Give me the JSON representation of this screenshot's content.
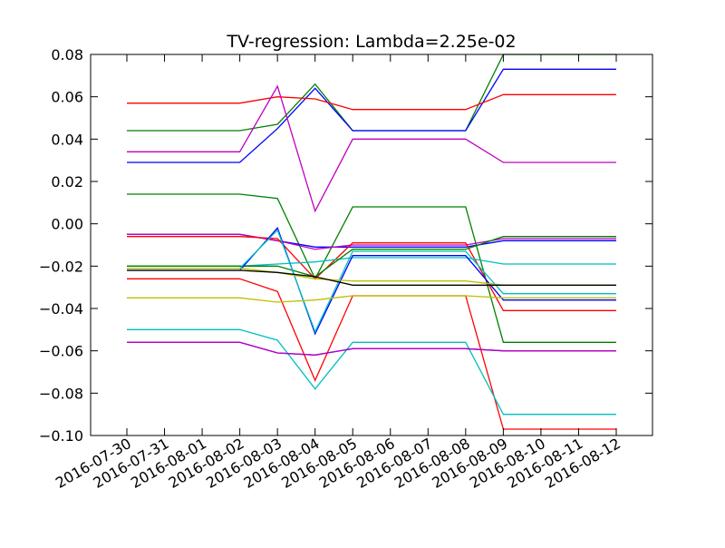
{
  "chart_data": {
    "type": "line",
    "title": "TV-regression: Lambda=2.25e-02",
    "xlabel": "",
    "ylabel": "",
    "ylim": [
      -0.1,
      0.08
    ],
    "grid": false,
    "legend": "none",
    "categories": [
      "2016-07-30",
      "2016-07-31",
      "2016-08-01",
      "2016-08-02",
      "2016-08-03",
      "2016-08-04",
      "2016-08-05",
      "2016-08-06",
      "2016-08-07",
      "2016-08-08",
      "2016-08-09",
      "2016-08-10",
      "2016-08-11",
      "2016-08-12"
    ],
    "y_ticks": [
      "0.08",
      "0.06",
      "0.04",
      "0.02",
      "0.00",
      "−0.02",
      "−0.04",
      "−0.06",
      "−0.08",
      "−0.10"
    ],
    "y_tick_values": [
      0.08,
      0.06,
      0.04,
      0.02,
      0.0,
      -0.02,
      -0.04,
      -0.06,
      -0.08,
      -0.1
    ],
    "series": [
      {
        "color": "#008000",
        "points": [
          [
            "2016-07-30",
            0.044
          ],
          [
            "2016-08-02",
            0.044
          ],
          [
            "2016-08-03",
            0.047
          ],
          [
            "2016-08-04",
            0.066
          ],
          [
            "2016-08-05",
            0.044
          ],
          [
            "2016-08-08",
            0.044
          ],
          [
            "2016-08-09",
            0.08
          ],
          [
            "2016-08-12",
            0.08
          ]
        ]
      },
      {
        "color": "#0000ff",
        "points": [
          [
            "2016-07-30",
            0.029
          ],
          [
            "2016-08-02",
            0.029
          ],
          [
            "2016-08-03",
            0.045
          ],
          [
            "2016-08-04",
            0.064
          ],
          [
            "2016-08-05",
            0.044
          ],
          [
            "2016-08-08",
            0.044
          ],
          [
            "2016-08-09",
            0.073
          ],
          [
            "2016-08-12",
            0.073
          ]
        ]
      },
      {
        "color": "#ff0000",
        "points": [
          [
            "2016-07-30",
            0.057
          ],
          [
            "2016-08-02",
            0.057
          ],
          [
            "2016-08-03",
            0.06
          ],
          [
            "2016-08-04",
            0.059
          ],
          [
            "2016-08-05",
            0.054
          ],
          [
            "2016-08-08",
            0.054
          ],
          [
            "2016-08-09",
            0.061
          ],
          [
            "2016-08-12",
            0.061
          ]
        ]
      },
      {
        "color": "#bf00bf",
        "points": [
          [
            "2016-07-30",
            0.034
          ],
          [
            "2016-08-02",
            0.034
          ],
          [
            "2016-08-03",
            0.065
          ],
          [
            "2016-08-04",
            0.006
          ],
          [
            "2016-08-05",
            0.04
          ],
          [
            "2016-08-08",
            0.04
          ],
          [
            "2016-08-09",
            0.029
          ],
          [
            "2016-08-12",
            0.029
          ]
        ]
      },
      {
        "color": "#008000",
        "points": [
          [
            "2016-07-30",
            0.014
          ],
          [
            "2016-08-02",
            0.014
          ],
          [
            "2016-08-03",
            0.012
          ],
          [
            "2016-08-04",
            -0.026
          ],
          [
            "2016-08-05",
            0.008
          ],
          [
            "2016-08-08",
            0.008
          ],
          [
            "2016-08-09",
            -0.056
          ],
          [
            "2016-08-12",
            -0.056
          ]
        ]
      },
      {
        "color": "#0000ff",
        "points": [
          [
            "2016-07-30",
            -0.005
          ],
          [
            "2016-08-02",
            -0.005
          ],
          [
            "2016-08-03",
            -0.008
          ],
          [
            "2016-08-04",
            -0.011
          ],
          [
            "2016-08-05",
            -0.011
          ],
          [
            "2016-08-08",
            -0.011
          ],
          [
            "2016-08-09",
            -0.008
          ],
          [
            "2016-08-12",
            -0.008
          ]
        ]
      },
      {
        "color": "#bf00bf",
        "points": [
          [
            "2016-07-30",
            -0.005
          ],
          [
            "2016-08-02",
            -0.005
          ],
          [
            "2016-08-03",
            -0.008
          ],
          [
            "2016-08-04",
            -0.012
          ],
          [
            "2016-08-05",
            -0.01
          ],
          [
            "2016-08-08",
            -0.01
          ],
          [
            "2016-08-09",
            -0.007
          ],
          [
            "2016-08-12",
            -0.007
          ]
        ]
      },
      {
        "color": "#ff0000",
        "points": [
          [
            "2016-07-30",
            -0.006
          ],
          [
            "2016-08-02",
            -0.006
          ],
          [
            "2016-08-03",
            -0.007
          ],
          [
            "2016-08-04",
            -0.026
          ],
          [
            "2016-08-05",
            -0.009
          ],
          [
            "2016-08-08",
            -0.009
          ],
          [
            "2016-08-09",
            -0.041
          ],
          [
            "2016-08-12",
            -0.041
          ]
        ]
      },
      {
        "color": "#00bfbf",
        "points": [
          [
            "2016-07-30",
            -0.02
          ],
          [
            "2016-08-02",
            -0.02
          ],
          [
            "2016-08-03",
            -0.019
          ],
          [
            "2016-08-04",
            -0.018
          ],
          [
            "2016-08-05",
            -0.016
          ],
          [
            "2016-08-08",
            -0.016
          ],
          [
            "2016-08-09",
            -0.019
          ],
          [
            "2016-08-12",
            -0.019
          ]
        ]
      },
      {
        "color": "#008000",
        "points": [
          [
            "2016-07-30",
            -0.02
          ],
          [
            "2016-08-02",
            -0.02
          ],
          [
            "2016-08-03",
            -0.02
          ],
          [
            "2016-08-04",
            -0.025
          ],
          [
            "2016-08-05",
            -0.012
          ],
          [
            "2016-08-08",
            -0.012
          ],
          [
            "2016-08-09",
            -0.006
          ],
          [
            "2016-08-12",
            -0.006
          ]
        ]
      },
      {
        "color": "#0000ff",
        "points": [
          [
            "2016-07-30",
            -0.022
          ],
          [
            "2016-08-02",
            -0.022
          ],
          [
            "2016-08-03",
            -0.002
          ],
          [
            "2016-08-04",
            -0.052
          ],
          [
            "2016-08-05",
            -0.015
          ],
          [
            "2016-08-08",
            -0.015
          ],
          [
            "2016-08-09",
            -0.036
          ],
          [
            "2016-08-12",
            -0.036
          ]
        ]
      },
      {
        "color": "#00bfbf",
        "points": [
          [
            "2016-07-30",
            -0.021
          ],
          [
            "2016-08-02",
            -0.021
          ],
          [
            "2016-08-03",
            -0.003
          ],
          [
            "2016-08-04",
            -0.051
          ],
          [
            "2016-08-05",
            -0.013
          ],
          [
            "2016-08-08",
            -0.013
          ],
          [
            "2016-08-09",
            -0.033
          ],
          [
            "2016-08-12",
            -0.033
          ]
        ]
      },
      {
        "color": "#bfbf00",
        "points": [
          [
            "2016-07-30",
            -0.021
          ],
          [
            "2016-08-02",
            -0.021
          ],
          [
            "2016-08-03",
            -0.023
          ],
          [
            "2016-08-04",
            -0.026
          ],
          [
            "2016-08-05",
            -0.027
          ],
          [
            "2016-08-08",
            -0.027
          ],
          [
            "2016-08-09",
            -0.029
          ],
          [
            "2016-08-12",
            -0.029
          ]
        ]
      },
      {
        "color": "#000000",
        "points": [
          [
            "2016-07-30",
            -0.022
          ],
          [
            "2016-08-02",
            -0.022
          ],
          [
            "2016-08-03",
            -0.023
          ],
          [
            "2016-08-04",
            -0.025
          ],
          [
            "2016-08-05",
            -0.029
          ],
          [
            "2016-08-08",
            -0.029
          ],
          [
            "2016-08-09",
            -0.029
          ],
          [
            "2016-08-12",
            -0.029
          ]
        ]
      },
      {
        "color": "#ff0000",
        "points": [
          [
            "2016-07-30",
            -0.026
          ],
          [
            "2016-08-02",
            -0.026
          ],
          [
            "2016-08-03",
            -0.032
          ],
          [
            "2016-08-04",
            -0.074
          ],
          [
            "2016-08-05",
            -0.034
          ],
          [
            "2016-08-08",
            -0.034
          ],
          [
            "2016-08-09",
            -0.097
          ],
          [
            "2016-08-12",
            -0.097
          ]
        ]
      },
      {
        "color": "#bfbf00",
        "points": [
          [
            "2016-07-30",
            -0.035
          ],
          [
            "2016-08-02",
            -0.035
          ],
          [
            "2016-08-03",
            -0.037
          ],
          [
            "2016-08-04",
            -0.036
          ],
          [
            "2016-08-05",
            -0.034
          ],
          [
            "2016-08-08",
            -0.034
          ],
          [
            "2016-08-09",
            -0.035
          ],
          [
            "2016-08-12",
            -0.035
          ]
        ]
      },
      {
        "color": "#00bfbf",
        "points": [
          [
            "2016-07-30",
            -0.05
          ],
          [
            "2016-08-02",
            -0.05
          ],
          [
            "2016-08-03",
            -0.055
          ],
          [
            "2016-08-04",
            -0.078
          ],
          [
            "2016-08-05",
            -0.056
          ],
          [
            "2016-08-08",
            -0.056
          ],
          [
            "2016-08-09",
            -0.09
          ],
          [
            "2016-08-12",
            -0.09
          ]
        ]
      },
      {
        "color": "#0000ff",
        "points": [
          [
            "2016-07-30",
            -0.056
          ],
          [
            "2016-08-02",
            -0.056
          ],
          [
            "2016-08-03",
            -0.061
          ],
          [
            "2016-08-04",
            -0.062
          ],
          [
            "2016-08-05",
            -0.059
          ],
          [
            "2016-08-08",
            -0.059
          ],
          [
            "2016-08-09",
            -0.06
          ],
          [
            "2016-08-12",
            -0.06
          ]
        ]
      },
      {
        "color": "#bf00bf",
        "points": [
          [
            "2016-07-30",
            -0.056
          ],
          [
            "2016-08-02",
            -0.056
          ],
          [
            "2016-08-03",
            -0.061
          ],
          [
            "2016-08-04",
            -0.062
          ],
          [
            "2016-08-05",
            -0.059
          ],
          [
            "2016-08-08",
            -0.059
          ],
          [
            "2016-08-09",
            -0.06
          ],
          [
            "2016-08-12",
            -0.06
          ]
        ]
      }
    ]
  }
}
